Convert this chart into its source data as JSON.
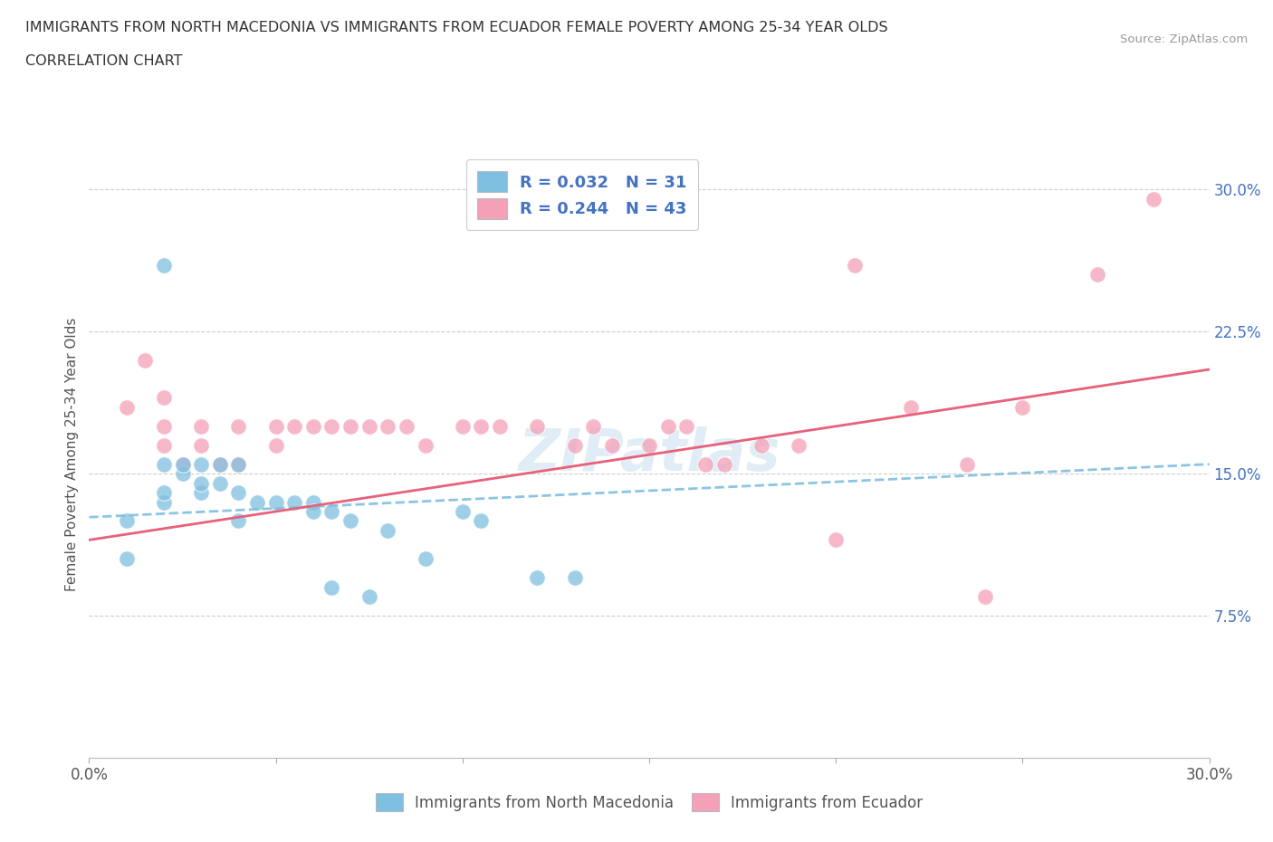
{
  "title_line1": "IMMIGRANTS FROM NORTH MACEDONIA VS IMMIGRANTS FROM ECUADOR FEMALE POVERTY AMONG 25-34 YEAR OLDS",
  "title_line2": "CORRELATION CHART",
  "source": "Source: ZipAtlas.com",
  "ylabel": "Female Poverty Among 25-34 Year Olds",
  "xlim": [
    0.0,
    0.3
  ],
  "ylim": [
    0.0,
    0.32
  ],
  "xtick_positions": [
    0.0,
    0.05,
    0.1,
    0.15,
    0.2,
    0.25,
    0.3
  ],
  "xtick_labels": [
    "0.0%",
    "",
    "",
    "",
    "",
    "",
    "30.0%"
  ],
  "yticks_right": [
    0.075,
    0.15,
    0.225,
    0.3
  ],
  "ytick_right_labels": [
    "7.5%",
    "15.0%",
    "22.5%",
    "30.0%"
  ],
  "color_blue": "#7fbfdf",
  "color_pink": "#f4a0b8",
  "color_blue_line": "#7fbfdf",
  "color_pink_line": "#e8607a",
  "watermark": "ZIPatlas",
  "macedonia_x": [
    0.01,
    0.01,
    0.02,
    0.02,
    0.02,
    0.025,
    0.025,
    0.03,
    0.03,
    0.03,
    0.035,
    0.035,
    0.04,
    0.04,
    0.04,
    0.045,
    0.05,
    0.055,
    0.06,
    0.06,
    0.065,
    0.07,
    0.08,
    0.09,
    0.1,
    0.105,
    0.12,
    0.13,
    0.02,
    0.065,
    0.075
  ],
  "macedonia_y": [
    0.105,
    0.125,
    0.135,
    0.14,
    0.155,
    0.15,
    0.155,
    0.14,
    0.145,
    0.155,
    0.145,
    0.155,
    0.125,
    0.14,
    0.155,
    0.135,
    0.135,
    0.135,
    0.135,
    0.13,
    0.13,
    0.125,
    0.12,
    0.105,
    0.13,
    0.125,
    0.095,
    0.095,
    0.26,
    0.09,
    0.085
  ],
  "ecuador_x": [
    0.01,
    0.015,
    0.02,
    0.02,
    0.02,
    0.025,
    0.03,
    0.03,
    0.035,
    0.04,
    0.04,
    0.05,
    0.05,
    0.055,
    0.06,
    0.065,
    0.07,
    0.075,
    0.08,
    0.085,
    0.09,
    0.1,
    0.105,
    0.11,
    0.12,
    0.13,
    0.135,
    0.14,
    0.15,
    0.155,
    0.16,
    0.165,
    0.17,
    0.18,
    0.19,
    0.2,
    0.205,
    0.22,
    0.235,
    0.24,
    0.25,
    0.27,
    0.285
  ],
  "ecuador_y": [
    0.185,
    0.21,
    0.165,
    0.175,
    0.19,
    0.155,
    0.165,
    0.175,
    0.155,
    0.155,
    0.175,
    0.165,
    0.175,
    0.175,
    0.175,
    0.175,
    0.175,
    0.175,
    0.175,
    0.175,
    0.165,
    0.175,
    0.175,
    0.175,
    0.175,
    0.165,
    0.175,
    0.165,
    0.165,
    0.175,
    0.175,
    0.155,
    0.155,
    0.165,
    0.165,
    0.115,
    0.26,
    0.185,
    0.155,
    0.085,
    0.185,
    0.255,
    0.295
  ],
  "mac_trend_x0": 0.0,
  "mac_trend_y0": 0.127,
  "mac_trend_x1": 0.3,
  "mac_trend_y1": 0.155,
  "ecu_trend_x0": 0.0,
  "ecu_trend_y0": 0.115,
  "ecu_trend_x1": 0.3,
  "ecu_trend_y1": 0.205
}
